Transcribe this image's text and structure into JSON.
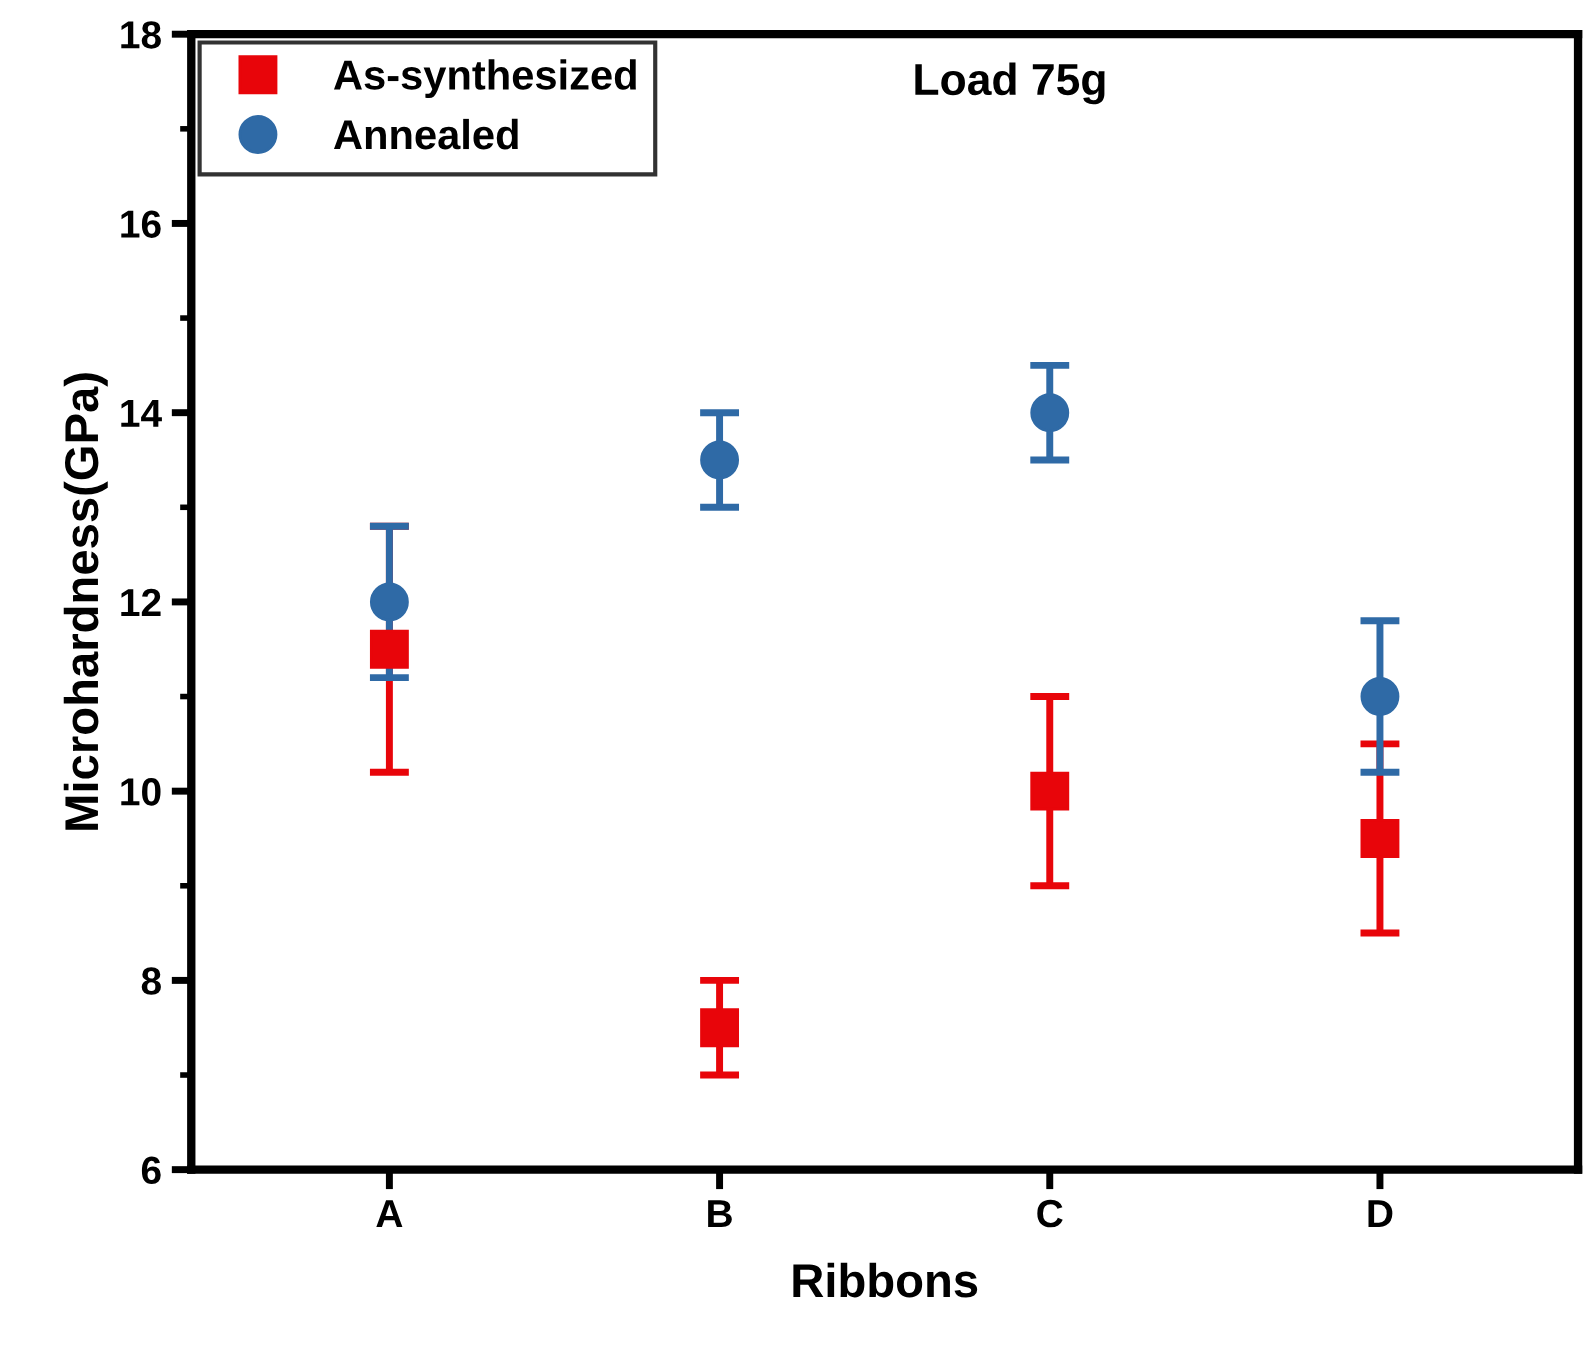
{
  "chart_data": {
    "type": "scatter",
    "xlabel": "Ribbons",
    "ylabel": "Microhardness(GPa)",
    "categories": [
      "A",
      "B",
      "C",
      "D"
    ],
    "series": [
      {
        "name": "As-synthesized",
        "color": "#e8050a",
        "marker": "square",
        "values": [
          11.5,
          7.5,
          10,
          9.5
        ],
        "errors": [
          1.3,
          0.5,
          1,
          1
        ]
      },
      {
        "name": "Annealed",
        "color": "#2f6aa6",
        "marker": "circle",
        "values": [
          12,
          13.5,
          14,
          11
        ],
        "errors": [
          0.8,
          0.5,
          0.5,
          0.8
        ]
      }
    ],
    "annotations": [
      "Load 75g"
    ],
    "ylim": [
      6,
      18
    ],
    "yticks": [
      6,
      8,
      10,
      12,
      14,
      16,
      18
    ],
    "grid": false,
    "legend": "top left"
  }
}
